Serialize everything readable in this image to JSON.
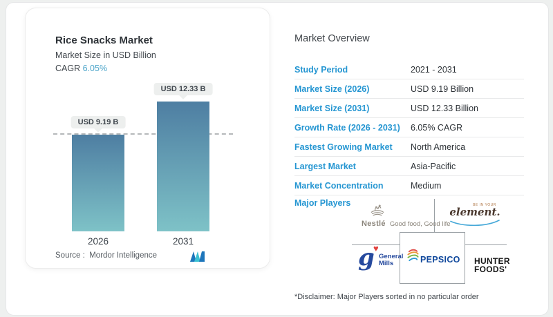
{
  "chart_card": {
    "title": "Rice Snacks Market",
    "subtitle": "Market Size in USD Billion",
    "cagr_label": "CAGR",
    "cagr_value": "6.05%",
    "source_label": "Source :",
    "source_value": "Mordor Intelligence"
  },
  "chart_data": {
    "type": "bar",
    "title": "Rice Snacks Market",
    "subtitle": "Market Size in USD Billion",
    "cagr": "6.05%",
    "categories": [
      "2026",
      "2031"
    ],
    "values": [
      9.19,
      12.33
    ],
    "value_labels": [
      "USD 9.19 B",
      "USD 12.33 B"
    ],
    "unit": "USD Billion",
    "ylim": [
      0,
      14
    ],
    "dashed_line_at": 9.19,
    "grid": "off",
    "bar_gradient_top": "#4e7ea2",
    "bar_gradient_bottom": "#7ec2c7"
  },
  "overview": {
    "heading": "Market Overview",
    "rows": [
      {
        "label": "Study Period",
        "value": "2021 - 2031"
      },
      {
        "label": "Market Size (2026)",
        "value": "USD 9.19 Billion"
      },
      {
        "label": "Market Size (2031)",
        "value": "USD 12.33 Billion"
      },
      {
        "label": "Growth Rate (2026 - 2031)",
        "value": "6.05% CAGR"
      },
      {
        "label": "Fastest Growing Market",
        "value": "North America"
      },
      {
        "label": "Largest Market",
        "value": "Asia-Pacific"
      },
      {
        "label": "Market Concentration",
        "value": "Medium"
      }
    ],
    "major_players_label": "Major Players",
    "players": {
      "nestle": {
        "name": "Nestlé",
        "tagline": "Good food, Good life"
      },
      "element": {
        "pre": "BE IN YOUR",
        "name": "element."
      },
      "general_mills": {
        "line1": "General",
        "line2": "Mills",
        "glyph": "g",
        "heart": "♥"
      },
      "pepsico": {
        "name": "PEPSICO"
      },
      "hunter_foods": {
        "line1": "HUNTER",
        "line2": "FOODS'"
      }
    },
    "disclaimer": "*Disclaimer: Major Players sorted in no particular order"
  },
  "colors": {
    "label_blue": "#2596d2",
    "cagr_blue": "#4ba4c9",
    "bar_top": "#4e7ea2",
    "bar_bottom": "#7ec2c7",
    "pepsico_blue": "#10489c",
    "general_mills_blue": "#264a9e",
    "heart_red": "#e2403c",
    "nestle_gray": "#8b857b",
    "element_brown": "#4a382e",
    "swoosh_blue": "#45a8d8",
    "hunter_black": "#161616"
  }
}
